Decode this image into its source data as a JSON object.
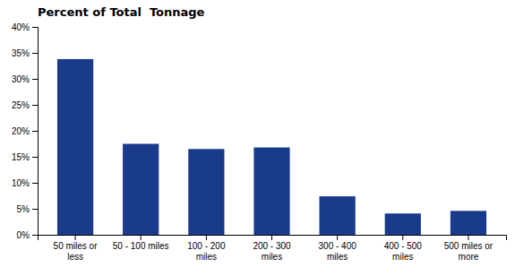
{
  "chart_data": {
    "type": "bar",
    "title": "Percent of Total  Tonnage",
    "categories": [
      "50 miles or\nless",
      "50 - 100 miles",
      "100 - 200\nmiles",
      "200 - 300\nmiles",
      "300 - 400\nmiles",
      "400 - 500\nmiles",
      "500 miles or\nmore"
    ],
    "values": [
      0.338,
      0.175,
      0.165,
      0.168,
      0.074,
      0.041,
      0.046
    ],
    "color": "#1a3a8c",
    "ylim": [
      0,
      0.4
    ],
    "yticks": [
      {
        "value": 0.0,
        "label": "0%"
      },
      {
        "value": 0.05,
        "label": "5%"
      },
      {
        "value": 0.1,
        "label": "10%"
      },
      {
        "value": 0.15,
        "label": "15%"
      },
      {
        "value": 0.2,
        "label": "20%"
      },
      {
        "value": 0.25,
        "label": "25%"
      },
      {
        "value": 0.3,
        "label": "30%"
      },
      {
        "value": 0.35,
        "label": "35%"
      },
      {
        "value": 0.4,
        "label": "40%"
      }
    ],
    "grid": false
  }
}
